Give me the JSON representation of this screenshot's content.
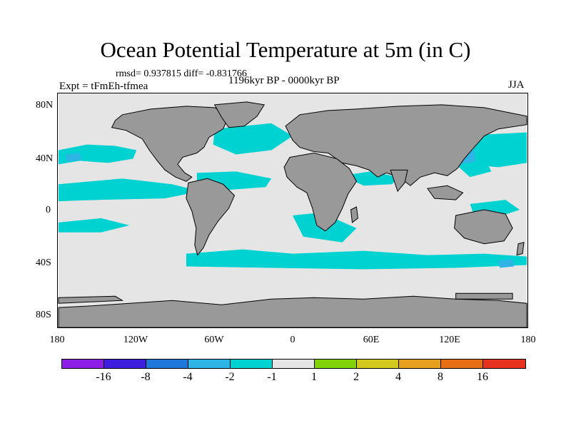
{
  "title": "Ocean Potential Temperature at 5m (in C)",
  "stats": "rmsd= 0.937815 diff= -0.831766",
  "expt": "Expt = tFmEh-tfmea",
  "period": "1196kyr BP - 0000kyr BP",
  "season": "JJA",
  "lat_ticks": [
    "80N",
    "40N",
    "0",
    "40S",
    "80S"
  ],
  "lon_ticks": [
    "180",
    "120W",
    "60W",
    "0",
    "60E",
    "120E",
    "180"
  ],
  "colors": {
    "land": "#999999",
    "ocean_neutral": "#e5e5e5",
    "cyan": "#00d2d2",
    "light_blue": "#2fb4e6",
    "mid_blue": "#1e78dc"
  },
  "colorbar": {
    "colors": [
      "#8c1ee6",
      "#3c1edc",
      "#1e78dc",
      "#2fb4e6",
      "#00d2d2",
      "#e5e5e5",
      "#82d20a",
      "#d2c81e",
      "#e6a01e",
      "#e66e14",
      "#e6321e"
    ],
    "labels": [
      "-16",
      "-8",
      "-4",
      "-2",
      "-1",
      "1",
      "2",
      "4",
      "8",
      "16"
    ]
  }
}
